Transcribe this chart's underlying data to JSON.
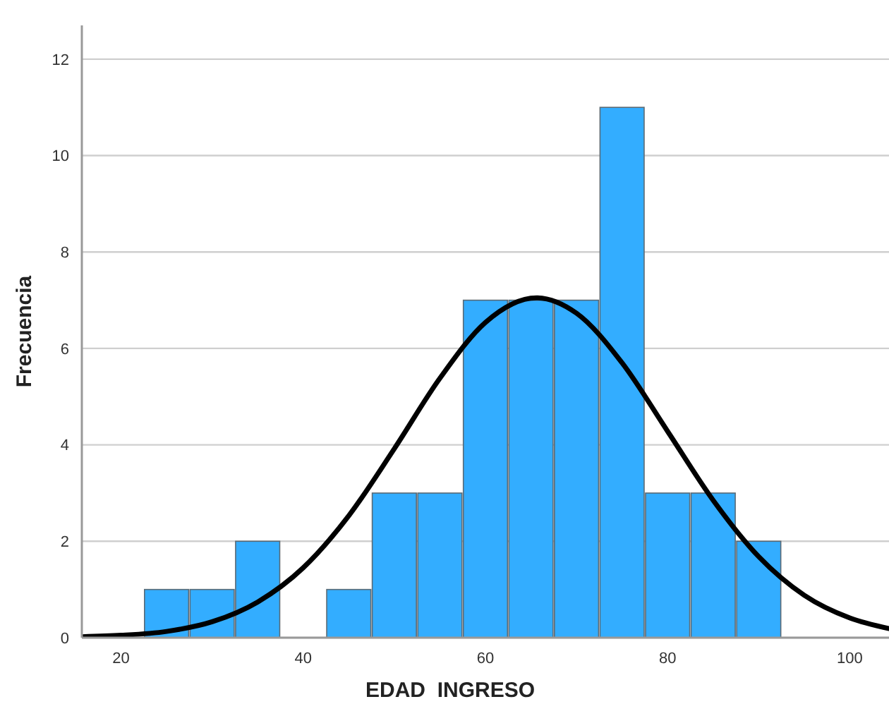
{
  "chart_data": {
    "type": "histogram",
    "xlabel": "EDAD  INGRESO",
    "ylabel": "Frecuencia",
    "bins": [
      22.5,
      27.5,
      32.5,
      37.5,
      42.5,
      47.5,
      52.5,
      57.5,
      62.5,
      67.5,
      72.5,
      77.5,
      82.5,
      87.5,
      92.5
    ],
    "series": [
      {
        "color": "#33adff",
        "values": [
          1,
          1,
          2,
          0,
          1,
          3,
          3,
          7,
          7,
          7,
          11,
          3,
          3,
          2
        ]
      },
      {
        "type": "line",
        "color": "#000000",
        "x": [
          15.7,
          20,
          25,
          30,
          35,
          40,
          45,
          50,
          55,
          60,
          65.6,
          70,
          75,
          80,
          85,
          90,
          95,
          100,
          104.3
        ],
        "values": [
          0.02,
          0.05,
          0.13,
          0.33,
          0.74,
          1.45,
          2.53,
          3.92,
          5.38,
          6.54,
          7.05,
          6.73,
          5.7,
          4.28,
          2.85,
          1.68,
          0.88,
          0.41,
          0.19
        ]
      }
    ],
    "xlim": [
      15.7,
      104.3
    ],
    "ylim": [
      0,
      12.7
    ],
    "xticks": [
      20,
      40,
      60,
      80,
      100
    ],
    "yticks": [
      0,
      2,
      4,
      6,
      8,
      10,
      12
    ],
    "grid": "y"
  }
}
